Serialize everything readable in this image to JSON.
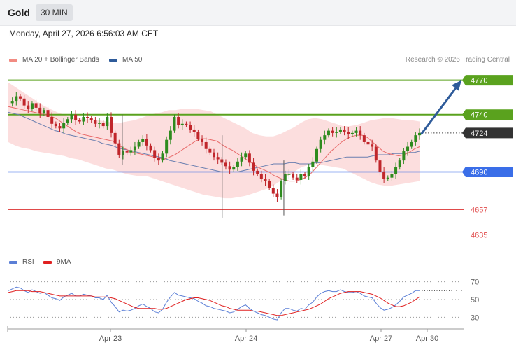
{
  "header": {
    "title": "Gold",
    "timeframe": "30 MIN"
  },
  "datetime": "Monday, April 27, 2026 6:56:03 AM CET",
  "credit": "Research © 2026 Trading Central",
  "legend": [
    {
      "label": "MA 20 + Bollinger Bands",
      "color": "#f28b82"
    },
    {
      "label": "MA 50",
      "color": "#2e5b9a"
    }
  ],
  "rsi_legend": [
    {
      "label": "RSI",
      "color": "#5b7fd6"
    },
    {
      "label": "9MA",
      "color": "#e02020"
    }
  ],
  "colors": {
    "green_level": "#5aa21e",
    "blue_level": "#3a6ee8",
    "red_level": "#e04a4a",
    "candle_up": "#2e8b1e",
    "candle_down": "#c0262b",
    "band_fill": "#fbd3d3",
    "last_price_bg": "#333333",
    "arrow": "#2e5b9a"
  },
  "chart_data": {
    "type": "candlestick",
    "ylim": [
      4620,
      4782
    ],
    "levels": [
      {
        "value": 4770,
        "label": "4770",
        "kind": "resistance",
        "color": "green"
      },
      {
        "value": 4740,
        "label": "4740",
        "kind": "resistance",
        "color": "green"
      },
      {
        "value": 4724,
        "label": "4724",
        "kind": "last",
        "color": "dark"
      },
      {
        "value": 4690,
        "label": "4690",
        "kind": "support",
        "color": "blue"
      },
      {
        "value": 4657,
        "label": "4657",
        "kind": "support",
        "color": "red"
      },
      {
        "value": 4635,
        "label": "4635",
        "kind": "support",
        "color": "red"
      }
    ],
    "x_ticks": [
      "Apr 23",
      "Apr 24",
      "Apr 27",
      "Apr 30"
    ],
    "close_path": [
      4750,
      4752,
      4756,
      4754,
      4748,
      4745,
      4750,
      4746,
      4741,
      4744,
      4738,
      4732,
      4730,
      4728,
      4733,
      4736,
      4740,
      4735,
      4734,
      4738,
      4737,
      4735,
      4732,
      4733,
      4730,
      4738,
      4724,
      4715,
      4705,
      4708,
      4707,
      4709,
      4712,
      4716,
      4719,
      4713,
      4709,
      4702,
      4700,
      4706,
      4718,
      4726,
      4738,
      4731,
      4732,
      4731,
      4727,
      4725,
      4719,
      4716,
      4710,
      4707,
      4703,
      4701,
      4698,
      4695,
      4692,
      4694,
      4699,
      4703,
      4706,
      4698,
      4691,
      4688,
      4684,
      4682,
      4676,
      4671,
      4668,
      4682,
      4688,
      4688,
      4685,
      4683,
      4688,
      4686,
      4694,
      4699,
      4710,
      4718,
      4722,
      4726,
      4724,
      4725,
      4727,
      4725,
      4723,
      4724,
      4726,
      4722,
      4716,
      4714,
      4712,
      4700,
      4690,
      4684,
      4685,
      4688,
      4694,
      4700,
      4708,
      4712,
      4716,
      4722,
      4724
    ],
    "ma20": [
      4747,
      4746,
      4745,
      4744,
      4743,
      4742,
      4741,
      4740,
      4739,
      4737,
      4734,
      4731,
      4728,
      4725,
      4723,
      4722,
      4721,
      4720,
      4719,
      4718,
      4717,
      4714,
      4711,
      4709,
      4707,
      4706,
      4705,
      4704,
      4703,
      4702,
      4701,
      4703,
      4705,
      4708,
      4711,
      4714,
      4717,
      4719,
      4719,
      4718,
      4717,
      4714,
      4711,
      4709,
      4706,
      4703,
      4700,
      4697,
      4694,
      4692,
      4690,
      4687,
      4685,
      4683,
      4682,
      4682,
      4683,
      4685,
      4688,
      4693,
      4698,
      4703,
      4708,
      4712,
      4716,
      4719,
      4721,
      4722,
      4722,
      4720,
      4716,
      4712,
      4708,
      4706,
      4705,
      4704,
      4705,
      4707,
      4710,
      4712
    ],
    "ma50": [
      4742,
      4741,
      4740,
      4738,
      4736,
      4734,
      4732,
      4730,
      4728,
      4726,
      4725,
      4723,
      4722,
      4721,
      4720,
      4719,
      4718,
      4717,
      4715,
      4714,
      4713,
      4711,
      4710,
      4709,
      4708,
      4707,
      4706,
      4705,
      4704,
      4703,
      4702,
      4700,
      4699,
      4698,
      4697,
      4696,
      4695,
      4694,
      4693,
      4692,
      4691,
      4690,
      4690,
      4690,
      4690,
      4691,
      4692,
      4693,
      4694,
      4695,
      4696,
      4697,
      4697,
      4697,
      4698,
      4698,
      4697,
      4697,
      4697,
      4698,
      4698,
      4699,
      4700,
      4701,
      4702,
      4703,
      4703,
      4703,
      4703,
      4703,
      4704,
      4705,
      4705,
      4705,
      4706,
      4706,
      4706,
      4707,
      4707,
      4708
    ],
    "bollinger_upper": [
      4768,
      4764,
      4760,
      4756,
      4752,
      4748,
      4745,
      4742,
      4740,
      4738,
      4737,
      4736,
      4736,
      4735,
      4734,
      4733,
      4733,
      4734,
      4735,
      4737,
      4739,
      4741,
      4742,
      4744,
      4744,
      4745,
      4745,
      4745,
      4744,
      4743,
      4740,
      4737,
      4734,
      4731,
      4728,
      4724,
      4722,
      4721,
      4721,
      4723,
      4726,
      4729,
      4733,
      4736,
      4737,
      4736,
      4734,
      4732,
      4730,
      4730,
      4731,
      4733,
      4735,
      4736,
      4737,
      4737,
      4736,
      4735,
      4735,
      4734
    ],
    "bollinger_lower": [
      4716,
      4713,
      4711,
      4710,
      4708,
      4707,
      4706,
      4705,
      4704,
      4702,
      4701,
      4699,
      4697,
      4695,
      4693,
      4692,
      4690,
      4688,
      4687,
      4686,
      4686,
      4684,
      4682,
      4680,
      4678,
      4676,
      4674,
      4672,
      4670,
      4669,
      4668,
      4667,
      4667,
      4668,
      4669,
      4671,
      4673,
      4675,
      4678,
      4682,
      4686,
      4690,
      4694,
      4696,
      4697,
      4696,
      4695,
      4694,
      4693,
      4690,
      4687,
      4684,
      4681,
      4679,
      4678,
      4678,
      4679,
      4680,
      4681,
      4682
    ],
    "rsi": {
      "ylim": [
        20,
        80
      ],
      "levels": [
        70,
        50,
        30
      ],
      "rsi_values": [
        60,
        62,
        64,
        63,
        60,
        58,
        61,
        59,
        57,
        58,
        55,
        52,
        51,
        49,
        53,
        55,
        57,
        54,
        54,
        56,
        55,
        54,
        52,
        52,
        50,
        55,
        47,
        42,
        36,
        38,
        37,
        38,
        40,
        43,
        45,
        42,
        40,
        36,
        35,
        39,
        47,
        53,
        58,
        55,
        54,
        53,
        52,
        51,
        48,
        46,
        43,
        42,
        40,
        39,
        38,
        37,
        35,
        36,
        39,
        42,
        44,
        40,
        37,
        35,
        33,
        32,
        30,
        28,
        27,
        35,
        40,
        40,
        38,
        37,
        40,
        39,
        44,
        47,
        53,
        57,
        59,
        60,
        59,
        59,
        61,
        59,
        58,
        58,
        59,
        57,
        54,
        53,
        52,
        46,
        41,
        38,
        39,
        41,
        44,
        48,
        53,
        55,
        57,
        60,
        60
      ],
      "ma_values": [
        58,
        59,
        60,
        60,
        60,
        60,
        59,
        59,
        59,
        58,
        57,
        56,
        55,
        54,
        54,
        54,
        54,
        54,
        54,
        54,
        54,
        54,
        53,
        53,
        53,
        53,
        52,
        51,
        49,
        47,
        45,
        43,
        41,
        40,
        40,
        40,
        40,
        40,
        39,
        39,
        40,
        42,
        44,
        46,
        48,
        50,
        51,
        52,
        52,
        51,
        50,
        49,
        47,
        45,
        43,
        42,
        40,
        39,
        38,
        38,
        38,
        38,
        37,
        37,
        36,
        35,
        34,
        33,
        32,
        32,
        33,
        34,
        35,
        36,
        37,
        38,
        39,
        41,
        43,
        45,
        48,
        51,
        53,
        55,
        57,
        58,
        59,
        59,
        59,
        59,
        58,
        57,
        56,
        54,
        52,
        49,
        46,
        44,
        42,
        42,
        43,
        45,
        47,
        50,
        53
      ]
    }
  }
}
